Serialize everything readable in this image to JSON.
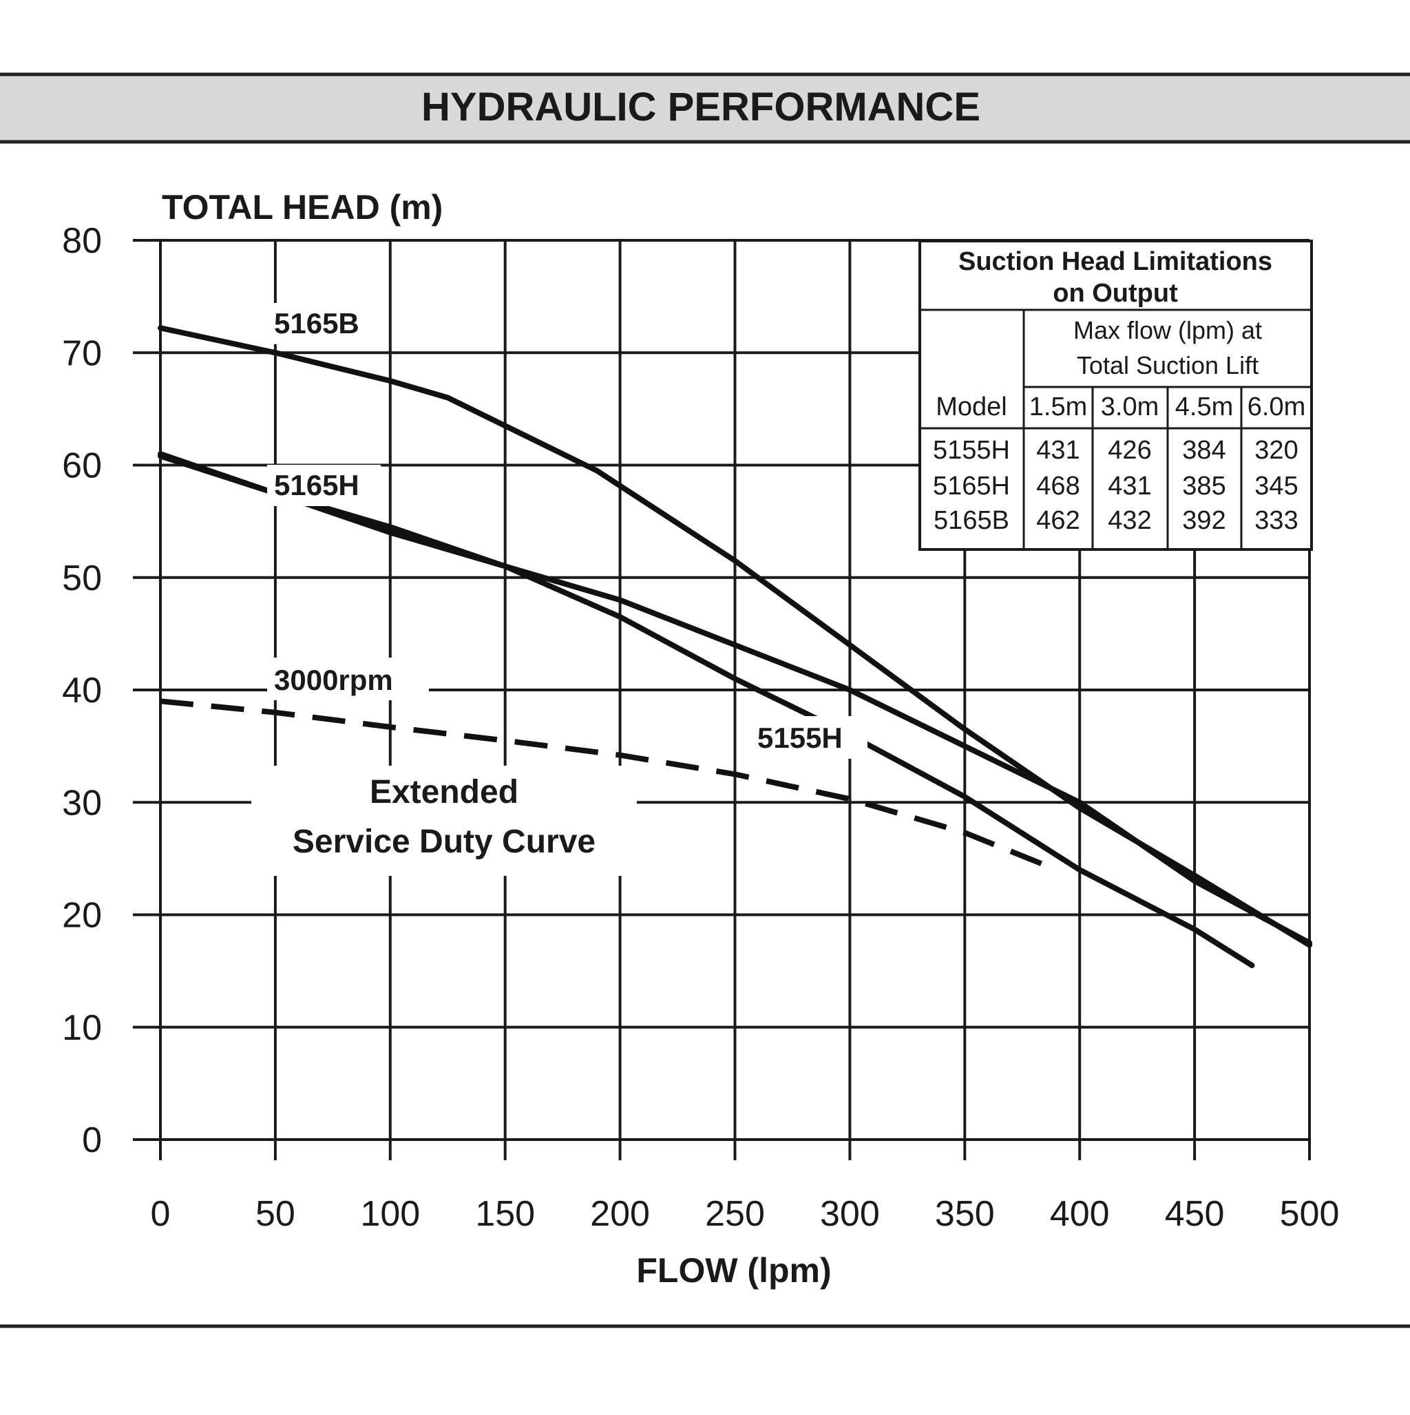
{
  "header": {
    "title": "HYDRAULIC PERFORMANCE",
    "band_color": "#d9d9d9"
  },
  "chart_data": {
    "type": "line",
    "title": "HYDRAULIC PERFORMANCE",
    "ylabel": "TOTAL HEAD (m)",
    "xlabel": "FLOW (lpm)",
    "xlim": [
      0,
      500
    ],
    "ylim": [
      0,
      80
    ],
    "x_ticks": [
      0,
      50,
      100,
      150,
      200,
      250,
      300,
      350,
      400,
      450,
      500
    ],
    "y_ticks": [
      0,
      10,
      20,
      30,
      40,
      50,
      60,
      70,
      80
    ],
    "grid": true,
    "series": [
      {
        "name": "5165B",
        "dashed": false,
        "points": [
          [
            0,
            72.2
          ],
          [
            50,
            70
          ],
          [
            100,
            67.5
          ],
          [
            125,
            66
          ],
          [
            150,
            63.5
          ],
          [
            190,
            59.5
          ],
          [
            250,
            51.5
          ],
          [
            300,
            44
          ],
          [
            350,
            36.5
          ],
          [
            400,
            29.5
          ],
          [
            450,
            23.5
          ],
          [
            500,
            17.3
          ]
        ]
      },
      {
        "name": "5165H",
        "dashed": false,
        "points": [
          [
            0,
            61
          ],
          [
            50,
            57.5
          ],
          [
            100,
            54.5
          ],
          [
            150,
            51
          ],
          [
            200,
            48
          ],
          [
            250,
            44
          ],
          [
            300,
            40
          ],
          [
            350,
            35
          ],
          [
            400,
            30
          ],
          [
            450,
            23
          ],
          [
            500,
            17.5
          ]
        ]
      },
      {
        "name": "5155H",
        "dashed": false,
        "points": [
          [
            0,
            60.8
          ],
          [
            50,
            57.5
          ],
          [
            100,
            54
          ],
          [
            150,
            51
          ],
          [
            200,
            46.5
          ],
          [
            250,
            41
          ],
          [
            300,
            36
          ],
          [
            350,
            30.5
          ],
          [
            400,
            24
          ],
          [
            450,
            18.7
          ],
          [
            475,
            15.5
          ]
        ]
      },
      {
        "name": "3000rpm",
        "dashed": true,
        "points": [
          [
            0,
            39
          ],
          [
            50,
            38
          ],
          [
            100,
            36.7
          ],
          [
            150,
            35.5
          ],
          [
            200,
            34.2
          ],
          [
            250,
            32.5
          ],
          [
            300,
            30.3
          ],
          [
            350,
            27.3
          ],
          [
            390,
            24
          ]
        ]
      }
    ],
    "annotations": [
      "5165B",
      "5165H",
      "5155H",
      "3000rpm",
      "Extended",
      "Service Duty Curve"
    ]
  },
  "suction_table": {
    "title_line1": "Suction Head Limitations",
    "title_line2": "on Output",
    "sub_line1": "Max flow (lpm) at",
    "sub_line2": "Total Suction Lift",
    "columns": [
      "Model",
      "1.5m",
      "3.0m",
      "4.5m",
      "6.0m"
    ],
    "rows": [
      [
        "5155H",
        "431",
        "426",
        "384",
        "320"
      ],
      [
        "5165H",
        "468",
        "431",
        "385",
        "345"
      ],
      [
        "5165B",
        "462",
        "432",
        "392",
        "333"
      ]
    ]
  }
}
